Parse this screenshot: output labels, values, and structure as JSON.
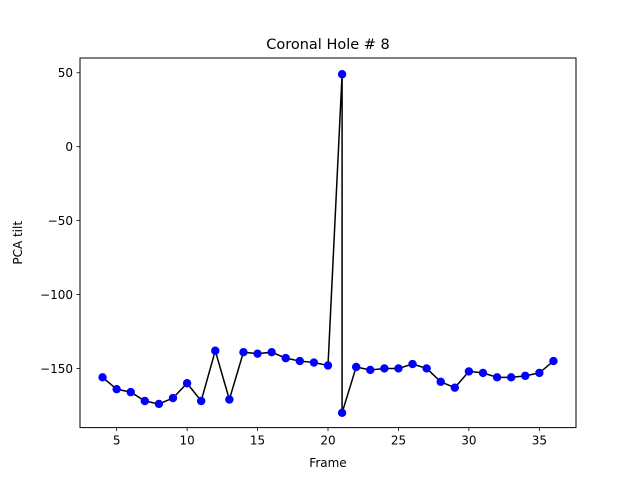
{
  "chart_data": {
    "type": "line",
    "title": "Coronal Hole # 8",
    "xlabel": "Frame",
    "ylabel": "PCA tilt",
    "xlim": [
      2.4,
      37.6
    ],
    "ylim": [
      -190,
      60
    ],
    "xticks": [
      5,
      10,
      15,
      20,
      25,
      30,
      35
    ],
    "yticks": [
      50,
      0,
      -50,
      -100,
      -150
    ],
    "ytick_labels": [
      "50",
      "0",
      "−50",
      "−100",
      "−150"
    ],
    "grid": false,
    "line_color": "#000000",
    "marker_color": "#0000ff",
    "series": [
      {
        "x": [
          4,
          5,
          6,
          7,
          8,
          9,
          10,
          11,
          12,
          13,
          14,
          15,
          16,
          17,
          18,
          19,
          20,
          21,
          21,
          22,
          23,
          24,
          25,
          26,
          27,
          28,
          29,
          30,
          31,
          32,
          33,
          34,
          35,
          36
        ],
        "y": [
          -156,
          -164,
          -166,
          -172,
          -174,
          -170,
          -160,
          -172,
          -138,
          -171,
          -139,
          -140,
          -139,
          -143,
          -145,
          -146,
          -148,
          49,
          -180,
          -149,
          -151,
          -150,
          -150,
          -147,
          -150,
          -159,
          -163,
          -152,
          -153,
          -156,
          -156,
          -155,
          -153,
          -145
        ]
      }
    ]
  }
}
